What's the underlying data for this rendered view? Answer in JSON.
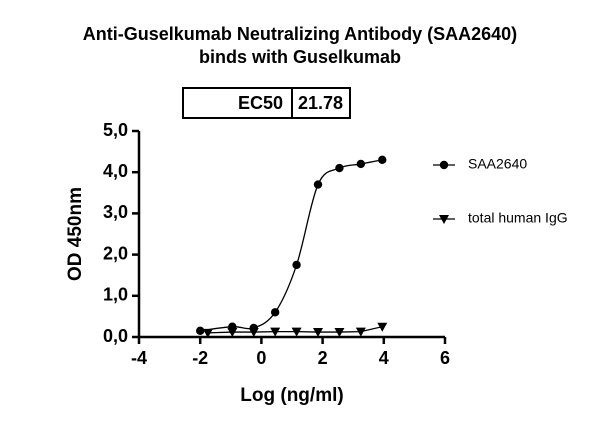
{
  "chart_data": {
    "type": "scatter",
    "title": [
      "Anti-Guselkumab Neutralizing Antibody (SAA2640)",
      "binds with Guselkumab"
    ],
    "table": {
      "header": "EC50",
      "value": 21.78
    },
    "x_label": "Log (ng/ml)",
    "y_label": "OD 450nm",
    "xlim": [
      -4,
      6
    ],
    "xticks": [
      -4,
      -2,
      0,
      2,
      4,
      6
    ],
    "ylim": [
      0,
      5
    ],
    "yticks": [
      {
        "value": 0,
        "label": "0,0"
      },
      {
        "value": 1,
        "label": "1,0"
      },
      {
        "value": 2,
        "label": "2,0"
      },
      {
        "value": 3,
        "label": "3,0"
      },
      {
        "value": 4,
        "label": "4,0"
      },
      {
        "value": 5,
        "label": "5,0"
      }
    ],
    "series": [
      {
        "name": "SAA2640",
        "color": "#000000",
        "marker": "circle",
        "curve": "smooth",
        "x": [
          -2.0,
          -0.95,
          -0.25,
          0.45,
          1.15,
          1.85,
          2.55,
          3.25,
          3.95
        ],
        "values": [
          0.15,
          0.25,
          0.22,
          0.6,
          1.75,
          3.7,
          4.1,
          4.2,
          4.3
        ]
      },
      {
        "name": "total human IgG",
        "color": "#000000",
        "marker": "triangle-down",
        "curve": "straight",
        "x": [
          -1.75,
          -0.95,
          -0.25,
          0.45,
          1.15,
          1.85,
          2.55,
          3.25,
          3.95
        ],
        "values": [
          0.1,
          0.12,
          0.12,
          0.13,
          0.13,
          0.12,
          0.12,
          0.13,
          0.25
        ]
      }
    ]
  }
}
